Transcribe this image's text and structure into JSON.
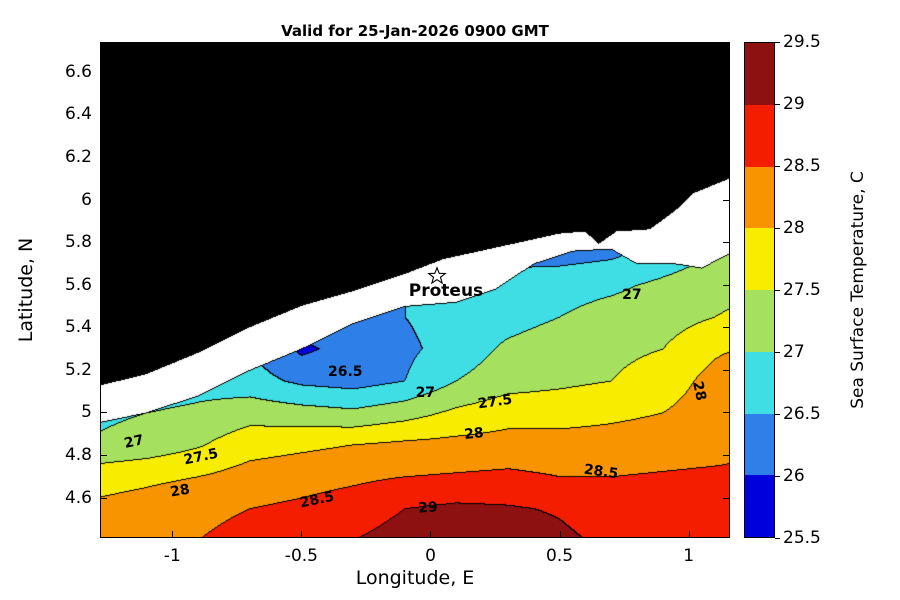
{
  "title": "Valid for 25-Jan-2026 0900 GMT",
  "axes": {
    "xlabel": "Longitude, E",
    "ylabel": "Latitude, N",
    "xlim": [
      -1.28,
      1.16
    ],
    "ylim": [
      4.41,
      6.74
    ],
    "xticks": [
      "-1",
      "-0.5",
      "0",
      "0.5",
      "1"
    ],
    "yticks": [
      "4.6",
      "4.8",
      "5",
      "5.2",
      "5.4",
      "5.6",
      "5.8",
      "6",
      "6.2",
      "6.4",
      "6.6"
    ]
  },
  "colorbar": {
    "label": "Sea Surface Temperature, C",
    "ticks": [
      "25.5",
      "26",
      "26.5",
      "27",
      "27.5",
      "28",
      "28.5",
      "29",
      "29.5"
    ],
    "colors": [
      "#0000DC",
      "#2E7FE8",
      "#3FDEE4",
      "#A5E15E",
      "#F8EC00",
      "#F79400",
      "#F51D00",
      "#8E1111"
    ],
    "land_color": "#000000",
    "nodata_color": "#ffffff"
  },
  "chart_data": {
    "type": "heatmap",
    "subtype": "filled-contour",
    "title": "Valid for 25-Jan-2026 0900 GMT",
    "xlabel": "Longitude, E",
    "ylabel": "Latitude, N",
    "units": "Sea Surface Temperature, C",
    "levels": [
      25.5,
      26,
      26.5,
      27,
      27.5,
      28,
      28.5,
      29,
      29.5
    ],
    "lon": [
      -1.3,
      -1.1,
      -0.9,
      -0.7,
      -0.5,
      -0.3,
      -0.1,
      0.1,
      0.3,
      0.5,
      0.7,
      0.9,
      1.1,
      1.2
    ],
    "lat": [
      4.4,
      4.55,
      4.7,
      4.85,
      5.0,
      5.15,
      5.3,
      5.45,
      5.6,
      5.75,
      5.9
    ],
    "sst": [
      [
        28.3,
        28.4,
        28.5,
        28.7,
        28.85,
        29.0,
        29.2,
        29.3,
        29.3,
        29.1,
        28.9,
        28.8,
        28.7,
        28.7
      ],
      [
        28.1,
        28.2,
        28.35,
        28.5,
        28.6,
        28.75,
        29.0,
        29.1,
        29.05,
        28.95,
        28.75,
        28.65,
        28.6,
        28.6
      ],
      [
        27.8,
        27.9,
        28.0,
        28.2,
        28.3,
        28.4,
        28.5,
        28.55,
        28.6,
        28.5,
        28.5,
        28.55,
        28.6,
        28.6
      ],
      [
        27.05,
        27.2,
        27.45,
        27.8,
        27.9,
        28.0,
        28.1,
        28.15,
        28.2,
        28.2,
        28.2,
        28.25,
        28.3,
        28.4
      ],
      [
        26.9,
        27.0,
        27.1,
        27.3,
        27.2,
        27.1,
        27.3,
        27.6,
        27.8,
        27.8,
        27.9,
        28.0,
        28.3,
        28.6
      ],
      [
        26.6,
        26.7,
        26.8,
        26.7,
        26.4,
        26.3,
        26.5,
        27.0,
        27.3,
        27.4,
        27.5,
        27.7,
        28.2,
        28.55
      ],
      [
        26.3,
        26.4,
        26.5,
        26.5,
        25.9,
        26.2,
        26.4,
        26.7,
        27.1,
        27.3,
        27.4,
        27.5,
        27.9,
        28.0
      ],
      [
        26.2,
        26.2,
        26.3,
        26.3,
        26.3,
        26.4,
        26.5,
        26.7,
        26.8,
        27.0,
        27.2,
        27.3,
        27.5,
        27.6
      ],
      [
        26.1,
        26.1,
        26.2,
        26.2,
        26.2,
        26.3,
        26.5,
        26.6,
        26.6,
        26.8,
        26.9,
        27.1,
        27.3,
        27.35
      ],
      [
        26.0,
        26.0,
        26.1,
        26.1,
        26.1,
        26.2,
        26.3,
        26.4,
        26.4,
        26.3,
        26.4,
        26.7,
        27.0,
        27.1
      ],
      [
        26.0,
        26.0,
        26.0,
        26.0,
        26.0,
        26.1,
        26.2,
        26.3,
        26.3,
        26.3,
        26.4,
        26.8,
        27.0,
        27.05
      ]
    ],
    "land_boundary": [
      [
        -1.3,
        5.12
      ],
      [
        -1.1,
        5.18
      ],
      [
        -0.9,
        5.28
      ],
      [
        -0.7,
        5.4
      ],
      [
        -0.5,
        5.5
      ],
      [
        -0.3,
        5.57
      ],
      [
        -0.1,
        5.65
      ],
      [
        0.05,
        5.72
      ],
      [
        0.2,
        5.76
      ],
      [
        0.35,
        5.8
      ],
      [
        0.5,
        5.84
      ],
      [
        0.6,
        5.85
      ],
      [
        0.65,
        5.79
      ],
      [
        0.72,
        5.85
      ],
      [
        0.85,
        5.86
      ],
      [
        0.95,
        5.95
      ],
      [
        1.02,
        6.03
      ],
      [
        1.08,
        6.06
      ],
      [
        1.16,
        6.1
      ]
    ],
    "data_boundary": [
      [
        -1.3,
        4.95
      ],
      [
        -1.1,
        5.0
      ],
      [
        -0.9,
        5.08
      ],
      [
        -0.7,
        5.2
      ],
      [
        -0.5,
        5.3
      ],
      [
        -0.3,
        5.42
      ],
      [
        -0.1,
        5.5
      ],
      [
        0.1,
        5.52
      ],
      [
        0.25,
        5.58
      ],
      [
        0.4,
        5.7
      ],
      [
        0.55,
        5.76
      ],
      [
        0.7,
        5.77
      ],
      [
        0.8,
        5.7
      ],
      [
        0.95,
        5.7
      ],
      [
        1.05,
        5.68
      ],
      [
        1.16,
        5.75
      ]
    ],
    "contour_labels": [
      {
        "text": "27",
        "lon": 0.78,
        "lat": 5.55,
        "rot": 0
      },
      {
        "text": "26.5",
        "lon": -0.33,
        "lat": 5.19,
        "rot": 0
      },
      {
        "text": "27",
        "lon": -0.02,
        "lat": 5.09,
        "rot": 0
      },
      {
        "text": "27.5",
        "lon": 0.25,
        "lat": 5.05,
        "rot": -8
      },
      {
        "text": "28",
        "lon": 0.17,
        "lat": 4.9,
        "rot": -6
      },
      {
        "text": "27",
        "lon": -1.15,
        "lat": 4.86,
        "rot": -12
      },
      {
        "text": "27.5",
        "lon": -0.89,
        "lat": 4.79,
        "rot": -12
      },
      {
        "text": "28",
        "lon": -0.97,
        "lat": 4.63,
        "rot": -10
      },
      {
        "text": "28.5",
        "lon": -0.44,
        "lat": 4.59,
        "rot": -12
      },
      {
        "text": "29",
        "lon": -0.01,
        "lat": 4.55,
        "rot": -4
      },
      {
        "text": "28.5",
        "lon": 0.66,
        "lat": 4.72,
        "rot": 8
      },
      {
        "text": "28",
        "lon": 1.04,
        "lat": 5.1,
        "rot": 78
      }
    ],
    "station": {
      "name": "Proteus",
      "lon": 0.025,
      "lat": 5.64,
      "label_lon": 0.06,
      "label_lat": 5.57
    }
  }
}
